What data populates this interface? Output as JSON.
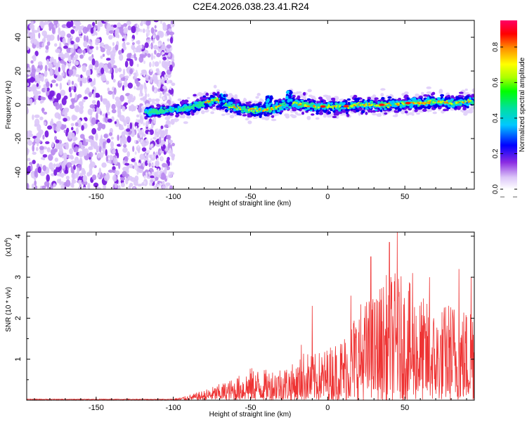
{
  "title": "C2E4.2026.038.23.41.R24",
  "chart_data": [
    {
      "type": "heatmap",
      "xlabel": "Height of straight line (km)",
      "ylabel": "Frequency (Hz)",
      "xlim": [
        -195,
        95
      ],
      "ylim": [
        -50,
        50
      ],
      "xticks": [
        -150,
        -100,
        -50,
        0,
        50
      ],
      "yticks": [
        -40,
        -20,
        0,
        20,
        40
      ],
      "noise_region_x": [
        -195,
        -100
      ],
      "ridge": {
        "x": [
          -118,
          -110,
          -100,
          -90,
          -80,
          -72,
          -65,
          -58,
          -50,
          -42,
          -35,
          -28,
          -22,
          -15,
          -8,
          0,
          10,
          20,
          30,
          40,
          50,
          60,
          70,
          80,
          90,
          95
        ],
        "y": [
          -4,
          -4,
          -3,
          -2,
          1,
          3,
          0,
          -2,
          -3,
          -3,
          -2,
          0,
          1,
          0,
          -1,
          -1,
          -1,
          0,
          0,
          0,
          1,
          1,
          2,
          1,
          2,
          2
        ]
      },
      "colorbar": {
        "label": "Normalized spectral amplitude",
        "range": [
          0.0,
          0.95
        ],
        "ticks": [
          "0.0",
          "0.2",
          "0.4",
          "0.6",
          "0.8"
        ]
      }
    },
    {
      "type": "line",
      "xlabel": "Height of straight line (km)",
      "ylabel": "SNR (10 * v/v)",
      "multiplier_label": "(x10",
      "multiplier_exp": "4",
      "xlim": [
        -195,
        95
      ],
      "ylim": [
        0,
        4.1
      ],
      "xticks": [
        -150,
        -100,
        -50,
        0,
        50
      ],
      "yticks": [
        1,
        2,
        3,
        4
      ],
      "color": "#ee3333",
      "envelope": {
        "x": [
          -195,
          -100,
          -90,
          -80,
          -70,
          -60,
          -50,
          -40,
          -30,
          -20,
          -15,
          -10,
          0,
          10,
          20,
          30,
          40,
          50,
          60,
          70,
          80,
          90,
          95
        ],
        "y": [
          0.01,
          0.03,
          0.12,
          0.25,
          0.4,
          0.55,
          0.8,
          0.75,
          0.85,
          0.9,
          1.25,
          1.1,
          1.3,
          1.6,
          2.4,
          2.6,
          3.2,
          3.0,
          2.6,
          2.2,
          2.5,
          2.3,
          2.8
        ]
      },
      "peaks": [
        {
          "x": -17,
          "y": 1.35
        },
        {
          "x": -10,
          "y": 2.3
        },
        {
          "x": 15,
          "y": 2.55
        },
        {
          "x": 28,
          "y": 3.5
        },
        {
          "x": 40,
          "y": 3.85
        },
        {
          "x": 45,
          "y": 4.1
        },
        {
          "x": 55,
          "y": 3.1
        },
        {
          "x": 66,
          "y": 3.0
        },
        {
          "x": 85,
          "y": 3.2
        },
        {
          "x": 93,
          "y": 3.0
        }
      ]
    }
  ]
}
